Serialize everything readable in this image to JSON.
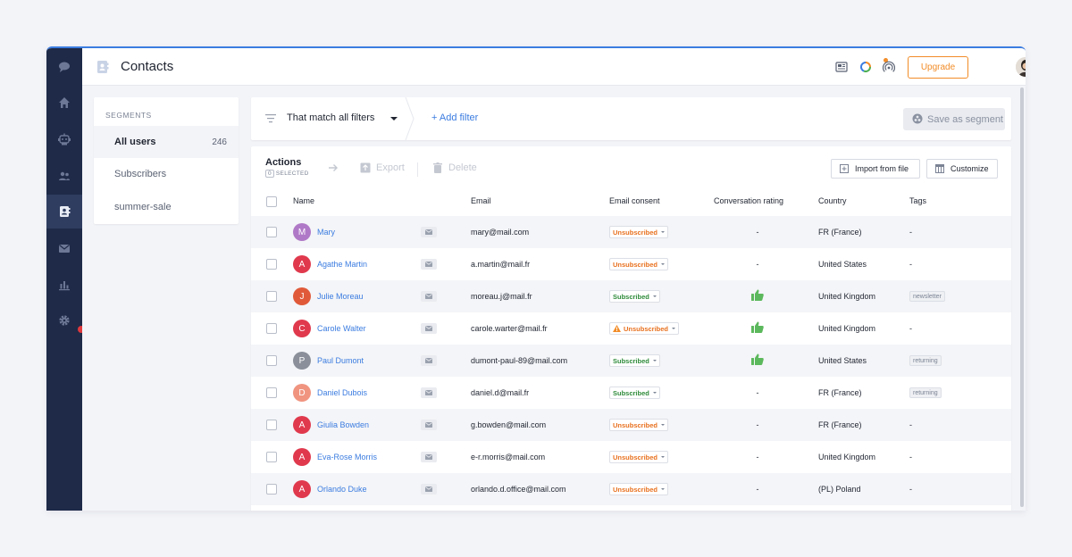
{
  "header": {
    "title": "Contacts",
    "upgrade_label": "Upgrade"
  },
  "sidebar_nav": [
    "chat-icon",
    "home-icon",
    "bot-icon",
    "team-icon",
    "contacts-icon",
    "inbox-icon",
    "analytics-icon",
    "settings-icon"
  ],
  "segments": {
    "header": "SEGMENTS",
    "items": [
      {
        "label": "All users",
        "count": "246"
      },
      {
        "label": "Subscribers"
      },
      {
        "label": "summer-sale"
      }
    ]
  },
  "filters": {
    "match_label": "That match all filters",
    "add_filter_label": "+ Add filter",
    "save_segment_label": "Save as segment"
  },
  "toolbar": {
    "actions_label": "Actions",
    "selected_count": "0",
    "selected_label": "SELECTED",
    "export_label": "Export",
    "delete_label": "Delete",
    "import_label": "Import from file",
    "customize_label": "Customize"
  },
  "table": {
    "columns": {
      "name": "Name",
      "email": "Email",
      "consent": "Email consent",
      "rating": "Conversation rating",
      "country": "Country",
      "tags": "Tags"
    },
    "rows": [
      {
        "initial": "M",
        "name": "Mary",
        "email": "mary@mail.com",
        "consent": "Unsubscribed",
        "consent_status": "unsubscribed",
        "warning": false,
        "rating": "-",
        "thumbs_up": false,
        "country": "FR (France)",
        "tag": "-",
        "avatar_color": "#b079c7"
      },
      {
        "initial": "A",
        "name": "Agathe Martin",
        "email": "a.martin@mail.fr",
        "consent": "Unsubscribed",
        "consent_status": "unsubscribed",
        "warning": false,
        "rating": "-",
        "thumbs_up": false,
        "country": "United States",
        "tag": "-",
        "avatar_color": "#e0394d"
      },
      {
        "initial": "J",
        "name": "Julie Moreau",
        "email": "moreau.j@mail.fr",
        "consent": "Subscribed",
        "consent_status": "subscribed",
        "warning": false,
        "rating": "",
        "thumbs_up": true,
        "country": "United Kingdom",
        "tag": "newsletter",
        "avatar_color": "#e05a3a"
      },
      {
        "initial": "C",
        "name": "Carole Walter",
        "email": "carole.warter@mail.fr",
        "consent": "Unsubscribed",
        "consent_status": "unsubscribed",
        "warning": true,
        "rating": "",
        "thumbs_up": true,
        "country": "United Kingdom",
        "tag": "-",
        "avatar_color": "#e0394d"
      },
      {
        "initial": "P",
        "name": "Paul Dumont",
        "email": "dumont-paul-89@mail.com",
        "consent": "Subscribed",
        "consent_status": "subscribed",
        "warning": false,
        "rating": "",
        "thumbs_up": true,
        "country": "United States",
        "tag": "returning",
        "avatar_color": "#8a8f99"
      },
      {
        "initial": "D",
        "name": "Daniel Dubois",
        "email": "daniel.d@mail.fr",
        "consent": "Subscribed",
        "consent_status": "subscribed",
        "warning": false,
        "rating": "-",
        "thumbs_up": false,
        "country": "FR (France)",
        "tag": "returning",
        "avatar_color": "#f09480"
      },
      {
        "initial": "A",
        "name": "Giulia Bowden",
        "email": "g.bowden@mail.com",
        "consent": "Unsubscribed",
        "consent_status": "unsubscribed",
        "warning": false,
        "rating": "-",
        "thumbs_up": false,
        "country": "FR (France)",
        "tag": "-",
        "avatar_color": "#e0394d"
      },
      {
        "initial": "A",
        "name": "Eva-Rose Morris",
        "email": "e-r.morris@mail.com",
        "consent": "Unsubscribed",
        "consent_status": "unsubscribed",
        "warning": false,
        "rating": "-",
        "thumbs_up": false,
        "country": "United Kingdom",
        "tag": "-",
        "avatar_color": "#e0394d"
      },
      {
        "initial": "A",
        "name": "Orlando Duke",
        "email": "orlando.d.office@mail.com",
        "consent": "Unsubscribed",
        "consent_status": "unsubscribed",
        "warning": false,
        "rating": "-",
        "thumbs_up": false,
        "country": "(PL) Poland",
        "tag": "-",
        "avatar_color": "#e0394d"
      }
    ]
  },
  "colors": {
    "accent": "#3b7ce0",
    "rail": "#1e2a48",
    "upgrade": "#f28c28",
    "subscribed": "#2e8b3a",
    "unsubscribed": "#e8701e",
    "thumbs": "#5cb85c"
  }
}
